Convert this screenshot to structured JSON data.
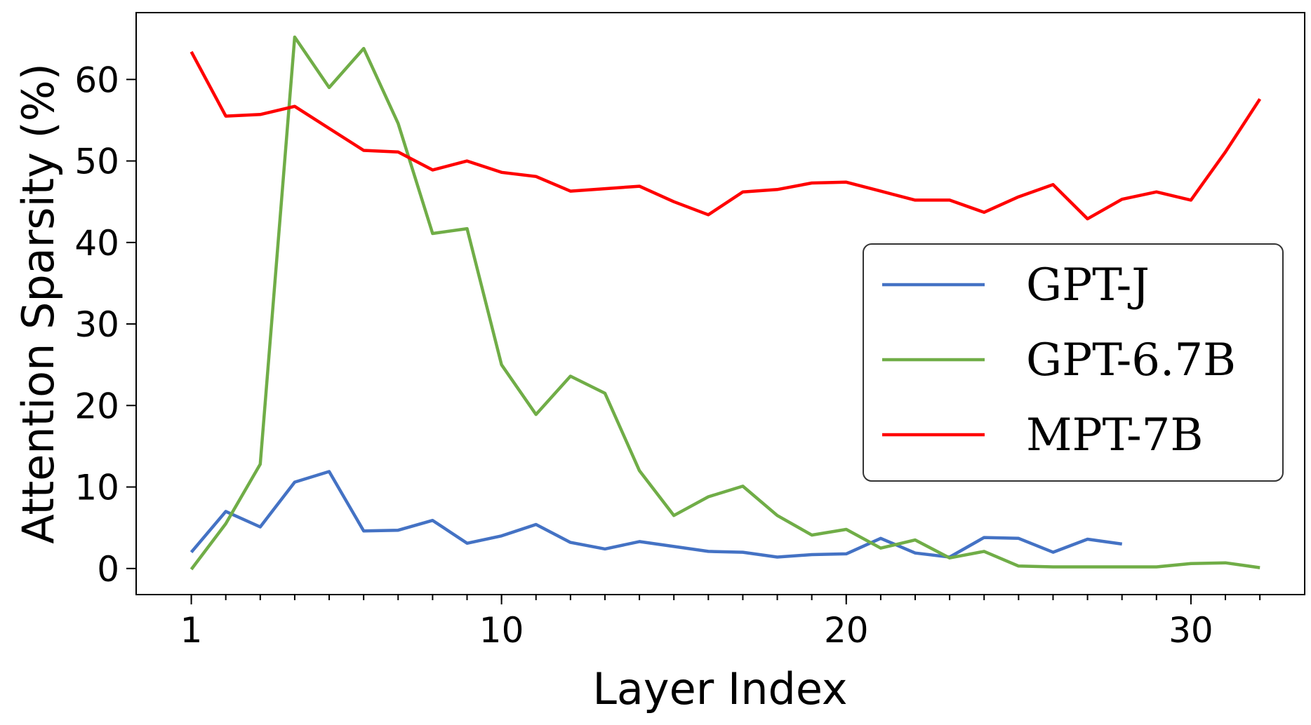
{
  "chart_data": {
    "type": "line",
    "title": "",
    "xlabel": "Layer Index",
    "ylabel": "Attention Sparsity (%)",
    "xlim": [
      -0.6,
      33.3
    ],
    "ylim": [
      -3.2,
      68.2
    ],
    "xticks": [
      1,
      10,
      20,
      30
    ],
    "xtick_labels": [
      "1",
      "10",
      "20",
      "30"
    ],
    "yticks": [
      0,
      10,
      20,
      30,
      40,
      50,
      60
    ],
    "ytick_labels": [
      "0",
      "10",
      "20",
      "30",
      "40",
      "50",
      "60"
    ],
    "grid": false,
    "legend_position": "center-right",
    "series": [
      {
        "name": "GPT-J",
        "color": "#4472c4",
        "x": [
          1,
          2,
          3,
          4,
          5,
          6,
          7,
          8,
          9,
          10,
          11,
          12,
          13,
          14,
          15,
          16,
          17,
          18,
          19,
          20,
          21,
          22,
          23,
          24,
          25,
          26,
          27,
          28
        ],
        "y": [
          2.0,
          7.0,
          5.1,
          10.6,
          11.9,
          4.6,
          4.7,
          5.9,
          3.1,
          4.0,
          5.4,
          3.2,
          2.4,
          3.3,
          2.7,
          2.1,
          2.0,
          1.4,
          1.7,
          1.8,
          3.7,
          1.9,
          1.4,
          3.8,
          3.7,
          2.0,
          3.6,
          3.0
        ]
      },
      {
        "name": "GPT-6.7B",
        "color": "#70ad47",
        "x": [
          1,
          2,
          3,
          4,
          5,
          6,
          7,
          8,
          9,
          10,
          11,
          12,
          13,
          14,
          15,
          16,
          17,
          18,
          19,
          20,
          21,
          22,
          23,
          24,
          25,
          26,
          27,
          28,
          29,
          30,
          31,
          32
        ],
        "y": [
          -0.1,
          5.5,
          12.8,
          65.2,
          59.0,
          63.8,
          54.6,
          41.1,
          41.7,
          25.0,
          18.9,
          23.6,
          21.5,
          12.0,
          6.5,
          8.8,
          10.1,
          6.5,
          4.1,
          4.8,
          2.5,
          3.5,
          1.3,
          2.1,
          0.3,
          0.2,
          0.2,
          0.2,
          0.2,
          0.6,
          0.7,
          0.1
        ]
      },
      {
        "name": "MPT-7B",
        "color": "#ff0000",
        "x": [
          1,
          2,
          3,
          4,
          5,
          6,
          7,
          8,
          9,
          10,
          11,
          12,
          13,
          14,
          15,
          16,
          17,
          18,
          19,
          20,
          21,
          22,
          23,
          24,
          25,
          26,
          27,
          28,
          29,
          30,
          31,
          32
        ],
        "y": [
          63.4,
          55.5,
          55.7,
          56.7,
          54.0,
          51.3,
          51.1,
          48.9,
          50.0,
          48.6,
          48.1,
          46.3,
          46.6,
          46.9,
          45.0,
          43.4,
          46.2,
          46.5,
          47.3,
          47.4,
          46.3,
          45.2,
          45.2,
          43.7,
          45.6,
          47.1,
          42.9,
          45.3,
          46.2,
          45.2,
          51.1,
          57.6
        ]
      }
    ]
  }
}
